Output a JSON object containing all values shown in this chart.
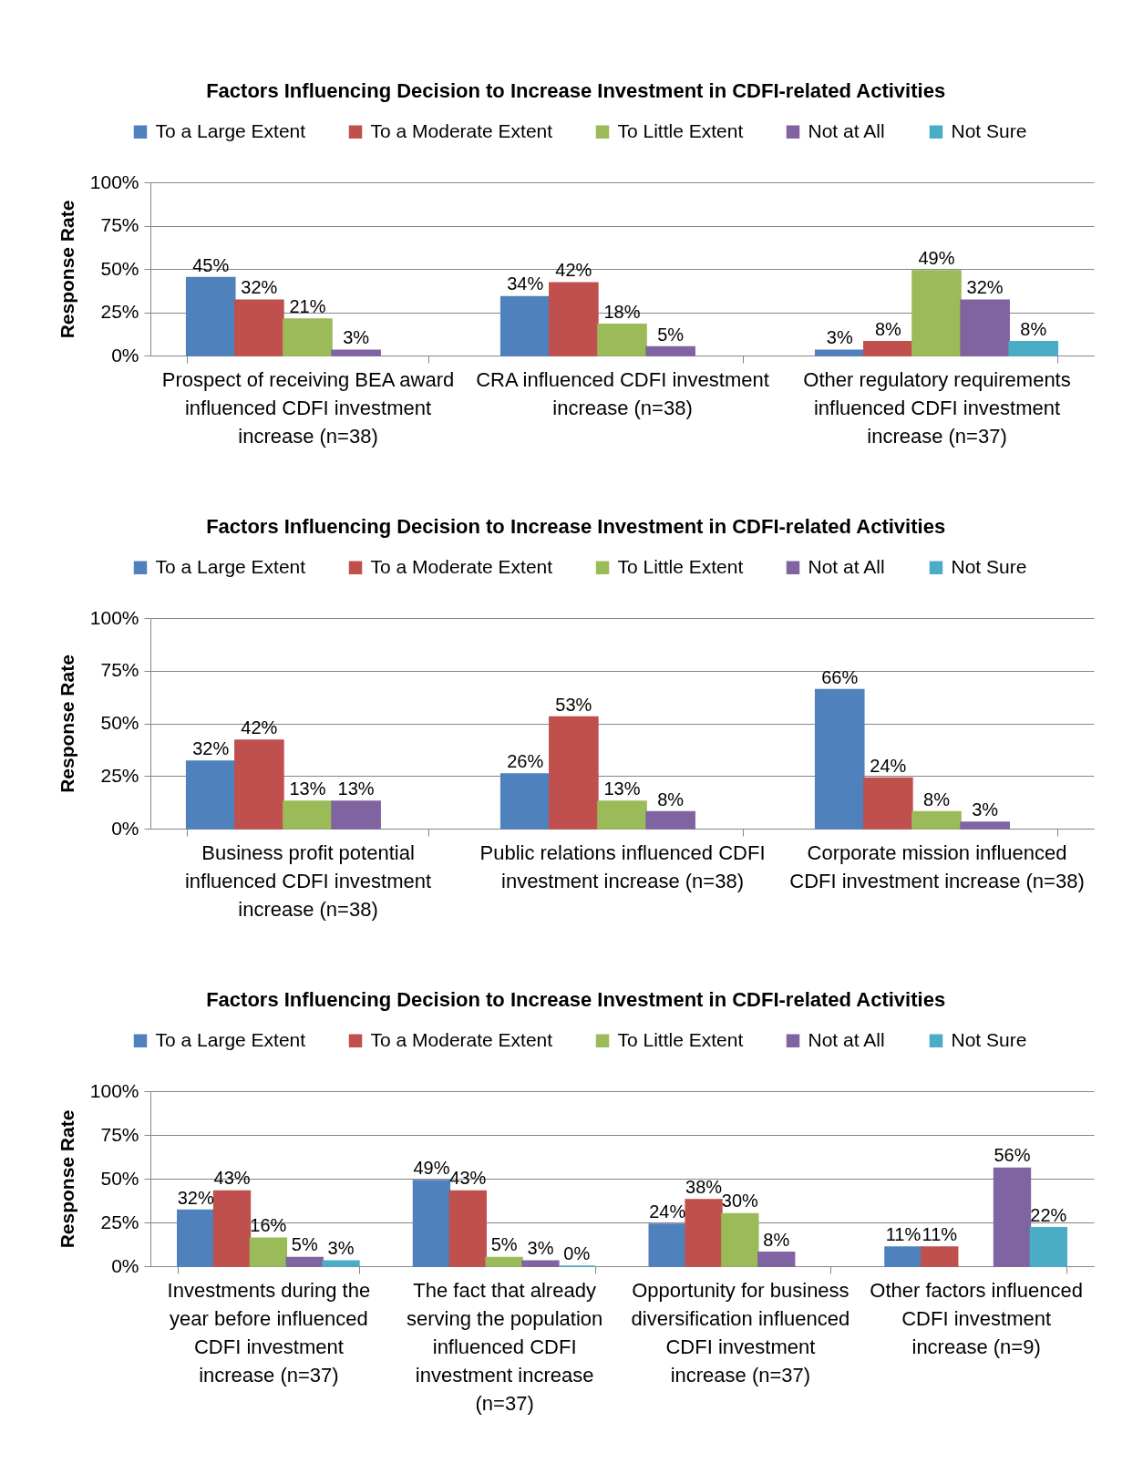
{
  "chart_data": [
    {
      "type": "bar",
      "title": "Factors Influencing Decision to Increase Investment in CDFI-related Activities",
      "ylabel": "Response Rate",
      "categories": [
        "Prospect of receiving BEA award influenced CDFI investment increase (n=38)",
        "CRA influenced CDFI investment increase (n=38)",
        "Other regulatory requirements influenced CDFI investment increase (n=37)"
      ],
      "series": [
        {
          "name": "To a Large Extent",
          "color": "#4f81bd",
          "values": [
            45,
            34,
            3
          ],
          "value_labels": [
            "45%",
            "34%",
            "3%"
          ]
        },
        {
          "name": "To a Moderate Extent",
          "color": "#c0504d",
          "values": [
            32,
            42,
            8
          ],
          "value_labels": [
            "32%",
            "42%",
            "8%"
          ]
        },
        {
          "name": "To Little Extent",
          "color": "#9bbb59",
          "values": [
            21,
            18,
            49
          ],
          "value_labels": [
            "21%",
            "18%",
            "49%"
          ]
        },
        {
          "name": "Not at All",
          "color": "#8064a2",
          "values": [
            3,
            5,
            32
          ],
          "value_labels": [
            "3%",
            "5%",
            "32%"
          ]
        },
        {
          "name": "Not Sure",
          "color": "#4bacc6",
          "values": [
            null,
            null,
            8
          ],
          "value_labels": [
            null,
            null,
            "8%"
          ]
        }
      ],
      "ylim": [
        0,
        100
      ],
      "yticks": [
        {
          "value": 0,
          "label": "0%"
        },
        {
          "value": 25,
          "label": "25%"
        },
        {
          "value": 50,
          "label": "50%"
        },
        {
          "value": 75,
          "label": "75%"
        },
        {
          "value": 100,
          "label": "100%"
        }
      ],
      "grid": "y",
      "legend": "top"
    },
    {
      "type": "bar",
      "title": "Factors Influencing Decision to Increase Investment in CDFI-related Activities",
      "ylabel": "Response Rate",
      "categories": [
        "Business profit potential influenced CDFI investment increase (n=38)",
        "Public relations influenced CDFI investment increase (n=38)",
        "Corporate mission influenced CDFI investment increase (n=38)"
      ],
      "series": [
        {
          "name": "To a Large Extent",
          "color": "#4f81bd",
          "values": [
            32,
            26,
            66
          ],
          "value_labels": [
            "32%",
            "26%",
            "66%"
          ]
        },
        {
          "name": "To a Moderate Extent",
          "color": "#c0504d",
          "values": [
            42,
            53,
            24
          ],
          "value_labels": [
            "42%",
            "53%",
            "24%"
          ]
        },
        {
          "name": "To Little Extent",
          "color": "#9bbb59",
          "values": [
            13,
            13,
            8
          ],
          "value_labels": [
            "13%",
            "13%",
            "8%"
          ]
        },
        {
          "name": "Not at All",
          "color": "#8064a2",
          "values": [
            13,
            8,
            3
          ],
          "value_labels": [
            "13%",
            "8%",
            "3%"
          ]
        },
        {
          "name": "Not Sure",
          "color": "#4bacc6",
          "values": [
            null,
            null,
            null
          ],
          "value_labels": [
            null,
            null,
            null
          ]
        }
      ],
      "ylim": [
        0,
        100
      ],
      "yticks": [
        {
          "value": 0,
          "label": "0%"
        },
        {
          "value": 25,
          "label": "25%"
        },
        {
          "value": 50,
          "label": "50%"
        },
        {
          "value": 75,
          "label": "75%"
        },
        {
          "value": 100,
          "label": "100%"
        }
      ],
      "grid": "y",
      "legend": "top"
    },
    {
      "type": "bar",
      "title": "Factors Influencing Decision to Increase Investment in CDFI-related Activities",
      "ylabel": "Response Rate",
      "categories": [
        "Investments during the year before influenced CDFI investment increase (n=37)",
        "The fact that already serving the population influenced CDFI investment increase (n=37)",
        "Opportunity for business diversification influenced CDFI investment increase (n=37)",
        "Other factors influenced CDFI investment increase (n=9)"
      ],
      "series": [
        {
          "name": "To a Large Extent",
          "color": "#4f81bd",
          "values": [
            32,
            49,
            24,
            11
          ],
          "value_labels": [
            "32%",
            "49%",
            "24%",
            "11%"
          ]
        },
        {
          "name": "To a Moderate Extent",
          "color": "#c0504d",
          "values": [
            43,
            43,
            38,
            11
          ],
          "value_labels": [
            "43%",
            "43%",
            "38%",
            "11%"
          ]
        },
        {
          "name": "To Little Extent",
          "color": "#9bbb59",
          "values": [
            16,
            5,
            30,
            null
          ],
          "value_labels": [
            "16%",
            "5%",
            "30%",
            null
          ]
        },
        {
          "name": "Not at All",
          "color": "#8064a2",
          "values": [
            5,
            3,
            8,
            56
          ],
          "value_labels": [
            "5%",
            "3%",
            "8%",
            "56%"
          ]
        },
        {
          "name": "Not Sure",
          "color": "#4bacc6",
          "values": [
            3,
            0,
            null,
            22
          ],
          "value_labels": [
            "3%",
            "0%",
            null,
            "22%"
          ]
        }
      ],
      "ylim": [
        0,
        100
      ],
      "yticks": [
        {
          "value": 0,
          "label": "0%"
        },
        {
          "value": 25,
          "label": "25%"
        },
        {
          "value": 50,
          "label": "50%"
        },
        {
          "value": 75,
          "label": "75%"
        },
        {
          "value": 100,
          "label": "100%"
        }
      ],
      "grid": "y",
      "legend": "top"
    }
  ]
}
